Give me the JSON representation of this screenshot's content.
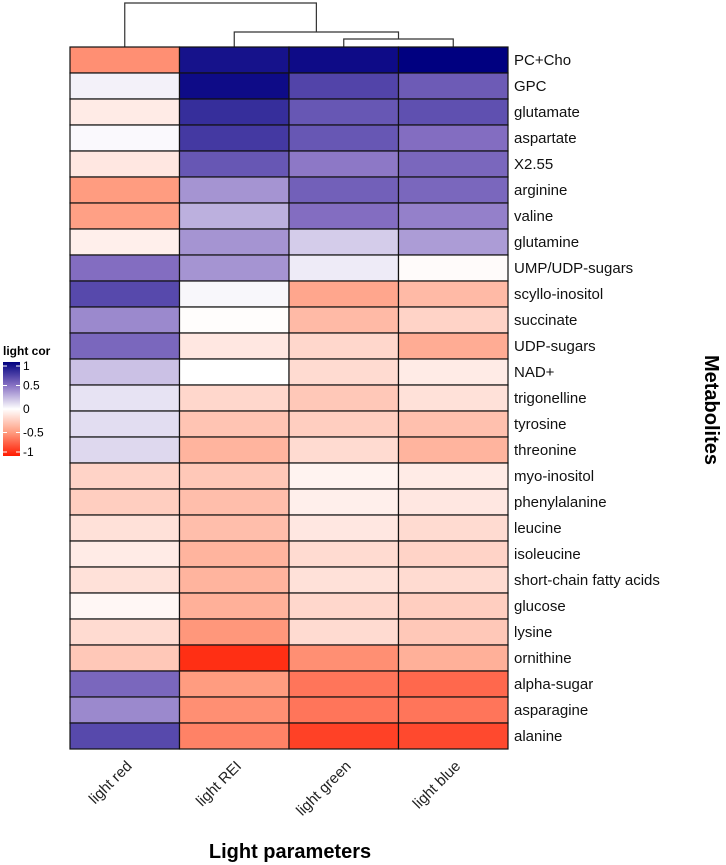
{
  "chart_data": {
    "type": "heatmap",
    "xlabel": "Light parameters",
    "ylabel": "Metabolites",
    "columns": [
      "light red",
      "light REI",
      "light green",
      "light blue"
    ],
    "rows": [
      "PC+Cho",
      "GPC",
      "glutamate",
      "aspartate",
      "X2.55",
      "arginine",
      "valine",
      "glutamine",
      "UMP/UDP-sugars",
      "scyllo-inositol",
      "succinate",
      "UDP-sugars",
      "NAD+",
      "trigonelline",
      "tyrosine",
      "threonine",
      "myo-inositol",
      "phenylalanine",
      "leucine",
      "isoleucine",
      "short-chain fatty acids",
      "glucose",
      "lysine",
      "ornithine",
      "alpha-sugar",
      "asparagine",
      "alanine"
    ],
    "values": [
      [
        -0.55,
        0.92,
        0.95,
        1.0
      ],
      [
        0.05,
        0.95,
        0.7,
        0.6
      ],
      [
        -0.1,
        0.8,
        0.62,
        0.65
      ],
      [
        0.02,
        0.75,
        0.62,
        0.52
      ],
      [
        -0.12,
        0.62,
        0.48,
        0.55
      ],
      [
        -0.5,
        0.38,
        0.58,
        0.55
      ],
      [
        -0.48,
        0.28,
        0.52,
        0.45
      ],
      [
        -0.08,
        0.38,
        0.18,
        0.35
      ],
      [
        0.52,
        0.38,
        0.07,
        -0.02
      ],
      [
        0.68,
        0.03,
        -0.45,
        -0.35
      ],
      [
        0.42,
        -0.01,
        -0.35,
        -0.22
      ],
      [
        0.55,
        -0.12,
        -0.2,
        -0.42
      ],
      [
        0.22,
        0.0,
        -0.18,
        -0.1
      ],
      [
        0.1,
        -0.2,
        -0.28,
        -0.15
      ],
      [
        0.12,
        -0.3,
        -0.25,
        -0.32
      ],
      [
        0.14,
        -0.38,
        -0.18,
        -0.38
      ],
      [
        -0.22,
        -0.28,
        -0.06,
        -0.1
      ],
      [
        -0.25,
        -0.33,
        -0.08,
        -0.12
      ],
      [
        -0.15,
        -0.33,
        -0.12,
        -0.18
      ],
      [
        -0.1,
        -0.38,
        -0.18,
        -0.22
      ],
      [
        -0.15,
        -0.38,
        -0.15,
        -0.18
      ],
      [
        -0.04,
        -0.4,
        -0.2,
        -0.25
      ],
      [
        -0.18,
        -0.52,
        -0.18,
        -0.28
      ],
      [
        -0.28,
        -0.92,
        -0.55,
        -0.4
      ],
      [
        0.55,
        -0.5,
        -0.65,
        -0.7
      ],
      [
        0.42,
        -0.55,
        -0.65,
        -0.65
      ],
      [
        0.68,
        -0.6,
        -0.85,
        -0.82
      ]
    ],
    "legend": {
      "title": "light cor",
      "ticks": [
        "1",
        "0.5",
        "0",
        "-0.5",
        "-1"
      ],
      "tick_values": [
        1,
        0.5,
        0,
        -0.5,
        -1
      ],
      "range": [
        -1,
        1
      ],
      "placement": "left"
    },
    "colors": {
      "high": "#000080",
      "mid_high": "#8872c4",
      "zero": "#ffffff",
      "mid_low": "#ff9c80",
      "low": "#ff1a00"
    },
    "column_dendrogram": "light red | (light REI | (light green | light blue))"
  }
}
